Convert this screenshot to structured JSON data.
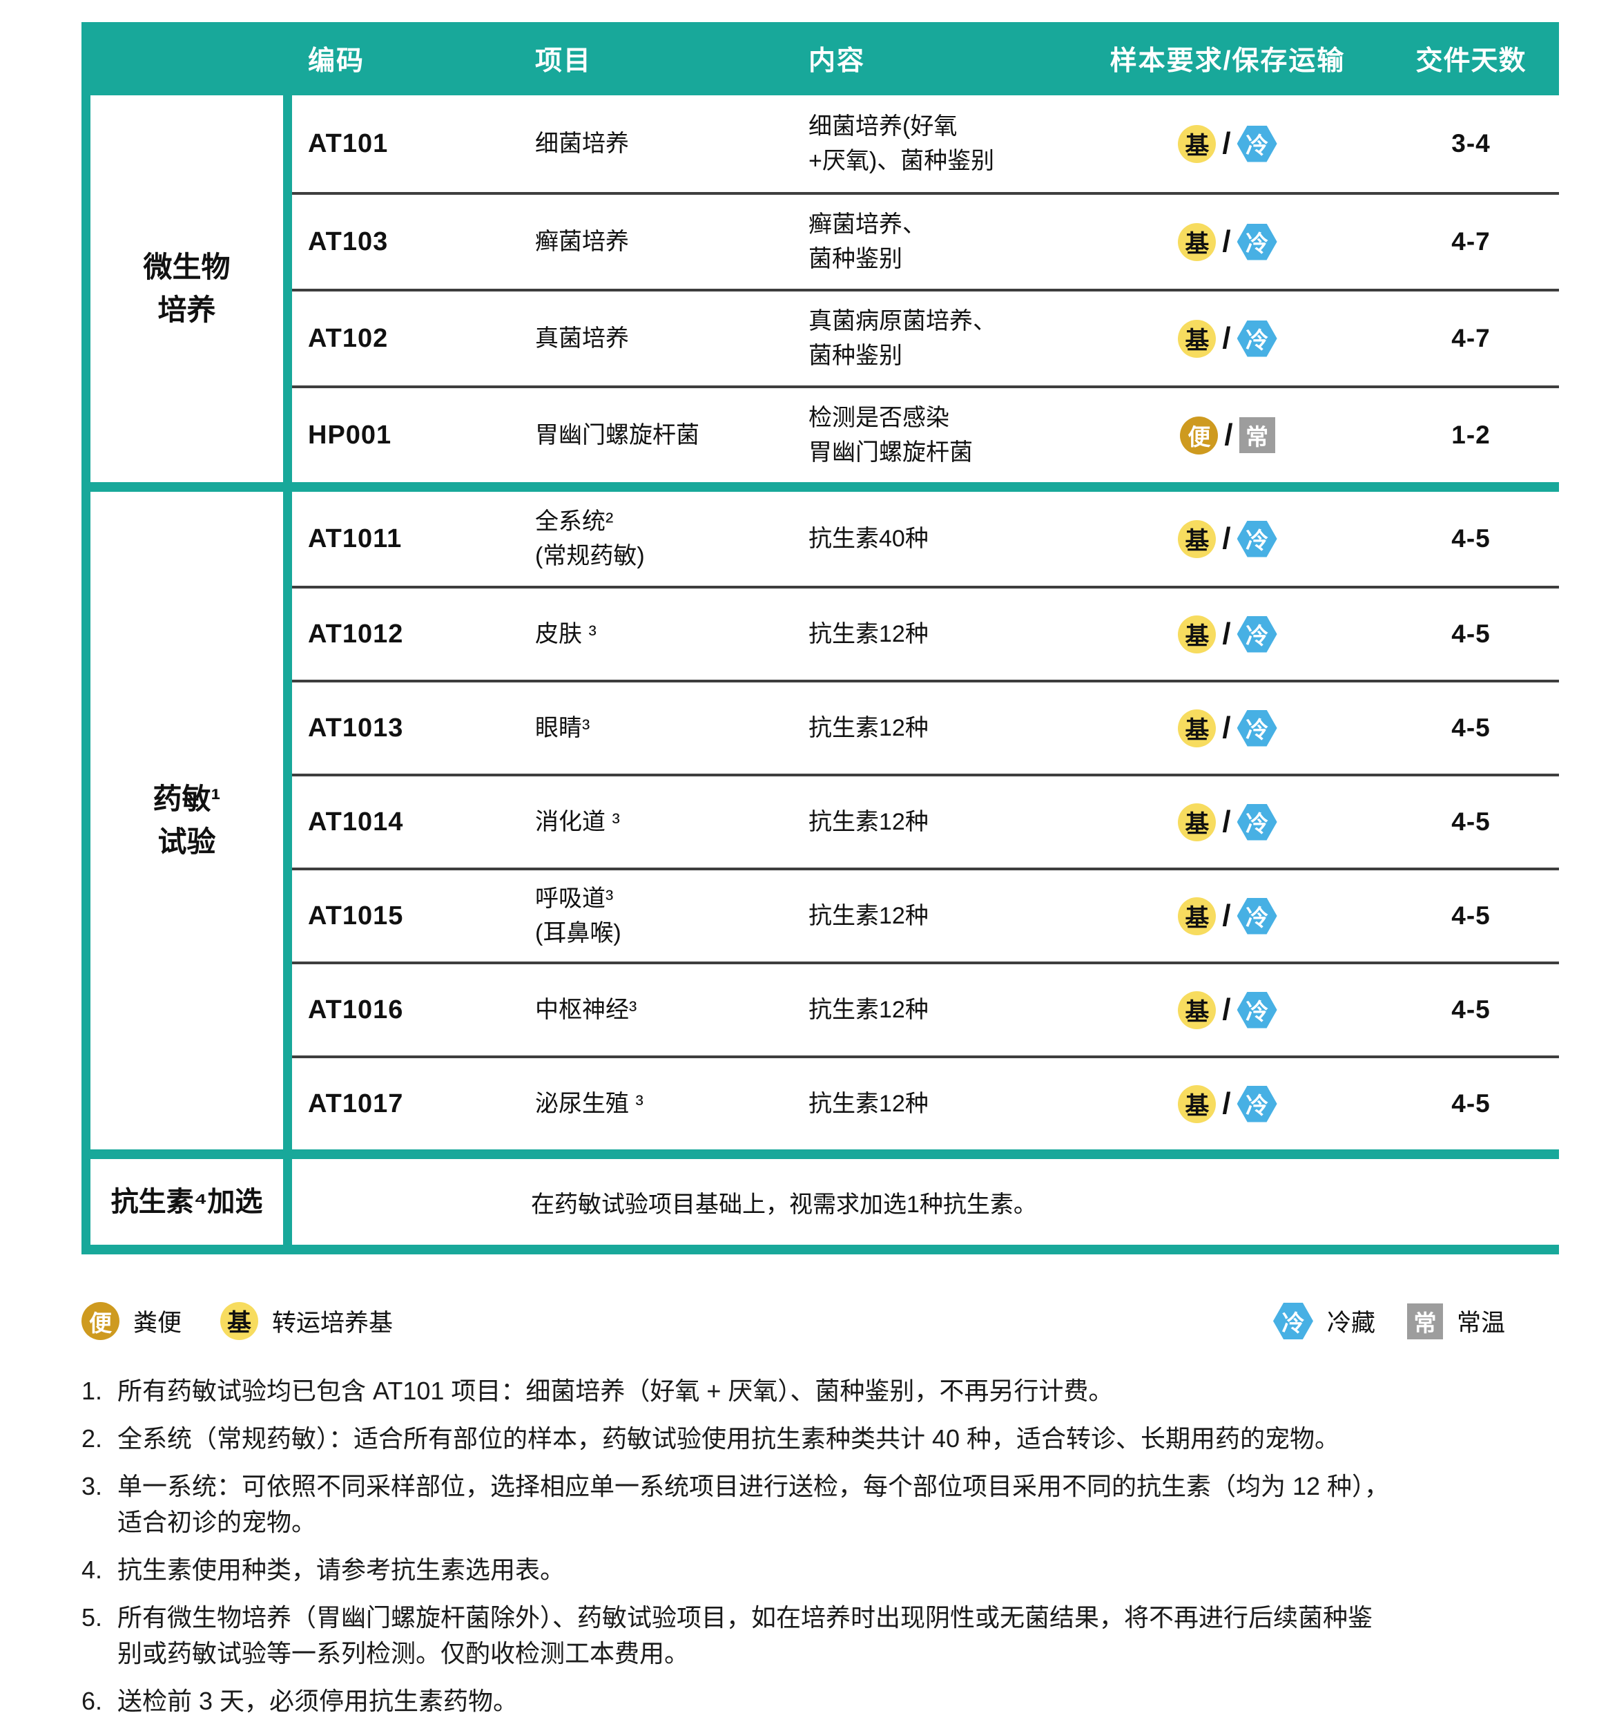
{
  "theme": {
    "teal": "#18A89A",
    "row_divider": "#3E3E3E",
    "badge_yellow": "#F7DC5F",
    "badge_gold": "#CE9A1F",
    "badge_blue": "#47B0E4",
    "badge_gray": "#9D9D9D"
  },
  "ui": {
    "slash": "/"
  },
  "header": {
    "columns": [
      "编码",
      "项目",
      "内容",
      "样本要求/保存运输",
      "交件天数"
    ]
  },
  "badges": {
    "bian": {
      "label": "便",
      "desc": "粪便",
      "shape": "circle",
      "color": "#CE9A1F"
    },
    "ji": {
      "label": "基",
      "desc": "转运培养基",
      "shape": "circle",
      "color": "#F7DC5F"
    },
    "leng": {
      "label": "冷",
      "desc": "冷藏",
      "shape": "hexagon",
      "color": "#47B0E4"
    },
    "chang": {
      "label": "常",
      "desc": "常温",
      "shape": "square",
      "color": "#9D9D9D"
    }
  },
  "sections": [
    {
      "category": "微生物\n培养",
      "rows": [
        {
          "code": "AT101",
          "item": "细菌培养",
          "content": "细菌培养(好氧\n+厌氧)、菌种鉴别",
          "sample": [
            "ji",
            "leng"
          ],
          "days": "3-4"
        },
        {
          "code": "AT103",
          "item": "癣菌培养",
          "content": "癣菌培养、\n菌种鉴别",
          "sample": [
            "ji",
            "leng"
          ],
          "days": "4-7"
        },
        {
          "code": "AT102",
          "item": "真菌培养",
          "content": "真菌病原菌培养、\n菌种鉴别",
          "sample": [
            "ji",
            "leng"
          ],
          "days": "4-7"
        },
        {
          "code": "HP001",
          "item": "胃幽门螺旋杆菌",
          "content": "检测是否感染\n胃幽门螺旋杆菌",
          "sample": [
            "bian",
            "chang"
          ],
          "days": "1-2"
        }
      ]
    },
    {
      "category": "药敏¹\n试验",
      "rows": [
        {
          "code": "AT1011",
          "item": "全系统²\n(常规药敏)",
          "content": "抗生素40种",
          "sample": [
            "ji",
            "leng"
          ],
          "days": "4-5"
        },
        {
          "code": "AT1012",
          "item": "皮肤 ³",
          "content": "抗生素12种",
          "sample": [
            "ji",
            "leng"
          ],
          "days": "4-5"
        },
        {
          "code": "AT1013",
          "item": "眼睛³",
          "content": "抗生素12种",
          "sample": [
            "ji",
            "leng"
          ],
          "days": "4-5"
        },
        {
          "code": "AT1014",
          "item": "消化道 ³",
          "content": "抗生素12种",
          "sample": [
            "ji",
            "leng"
          ],
          "days": "4-5"
        },
        {
          "code": "AT1015",
          "item": "呼吸道³\n(耳鼻喉)",
          "content": "抗生素12种",
          "sample": [
            "ji",
            "leng"
          ],
          "days": "4-5"
        },
        {
          "code": "AT1016",
          "item": "中枢神经³",
          "content": "抗生素12种",
          "sample": [
            "ji",
            "leng"
          ],
          "days": "4-5"
        },
        {
          "code": "AT1017",
          "item": "泌尿生殖 ³",
          "content": "抗生素12种",
          "sample": [
            "ji",
            "leng"
          ],
          "days": "4-5"
        }
      ]
    },
    {
      "category": "抗生素⁴加选",
      "note": "在药敏试验项目基础上，视需求加选1种抗生素。"
    }
  ],
  "footnotes": [
    {
      "num": "1.",
      "text": "所有药敏试验均已包含 AT101 项目：细菌培养（好氧 + 厌氧）、菌种鉴别，不再另行计费。"
    },
    {
      "num": "2.",
      "text": "全系统（常规药敏）：适合所有部位的样本，药敏试验使用抗生素种类共计 40 种，适合转诊、长期用药的宠物。"
    },
    {
      "num": "3.",
      "text": "单一系统：可依照不同采样部位，选择相应单一系统项目进行送检，每个部位项目采用不同的抗生素（均为 12 种），\n适合初诊的宠物。"
    },
    {
      "num": "4.",
      "text": "抗生素使用种类，请参考抗生素选用表。"
    },
    {
      "num": "5.",
      "text": "所有微生物培养（胃幽门螺旋杆菌除外）、药敏试验项目，如在培养时出现阴性或无菌结果，将不再进行后续菌种鉴\n别或药敏试验等一系列检测。仅酌收检测工本费用。"
    },
    {
      "num": "6.",
      "text": "送检前 3 天，必须停用抗生素药物。"
    }
  ]
}
